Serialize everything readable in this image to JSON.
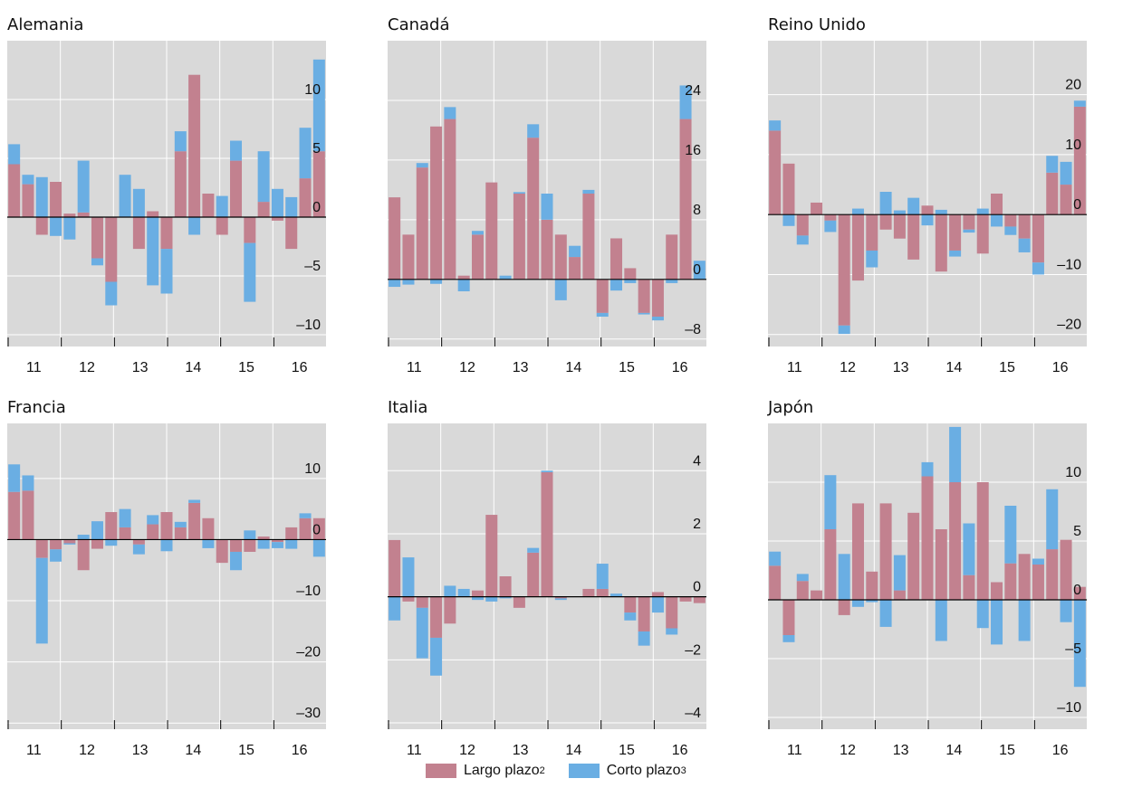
{
  "legend": {
    "long_label": "Largo plazo",
    "long_sup": "2",
    "short_label": "Corto plazo",
    "short_sup": "3"
  },
  "colors": {
    "long": "#c2818f",
    "short": "#6aaee3",
    "background": "#d9d9d9",
    "grid": "#ffffff",
    "zero_line": "#000000"
  },
  "chart_data": [
    {
      "type": "bar",
      "title": "Alemania",
      "stacked": true,
      "x_labels": [
        "11",
        "12",
        "13",
        "14",
        "15",
        "16"
      ],
      "y_ticks": [
        10,
        5,
        0,
        -5,
        -10
      ],
      "ylim": [
        -11,
        15
      ],
      "series": [
        {
          "name": "Largo plazo",
          "values": [
            4.5,
            2.8,
            -1.5,
            3.0,
            0.3,
            0.4,
            -3.5,
            -5.5,
            0,
            -2.7,
            0.5,
            -2.7,
            5.6,
            12.1,
            2.0,
            -1.5,
            4.8,
            -2.2,
            1.3,
            -0.3,
            -2.7,
            3.3,
            5.6
          ]
        },
        {
          "name": "Corto plazo",
          "values": [
            1.7,
            0.8,
            3.4,
            -1.6,
            -1.9,
            4.4,
            -0.6,
            -2.0,
            3.6,
            2.4,
            -5.8,
            -3.8,
            1.7,
            -1.5,
            0.0,
            1.8,
            1.7,
            -5.0,
            4.3,
            2.4,
            1.7,
            4.3,
            7.8
          ]
        }
      ]
    },
    {
      "type": "bar",
      "title": "Canadá",
      "stacked": true,
      "x_labels": [
        "11",
        "12",
        "13",
        "14",
        "15",
        "16"
      ],
      "y_ticks": [
        24,
        16,
        8,
        0,
        -8
      ],
      "ylim": [
        -9,
        32
      ],
      "series": [
        {
          "name": "Largo plazo",
          "values": [
            11,
            6,
            15,
            20.5,
            21.5,
            0.5,
            6.0,
            13.0,
            0.0,
            11.5,
            19.0,
            8.0,
            6.0,
            3.0,
            11.5,
            -4.5,
            5.5,
            1.5,
            -4.5,
            -5.0,
            6.0,
            21.5,
            0
          ]
        },
        {
          "name": "Corto plazo",
          "values": [
            -1.0,
            -0.7,
            0.6,
            -0.6,
            1.6,
            -1.6,
            0.5,
            0.0,
            0.5,
            0.2,
            1.8,
            3.5,
            -2.8,
            1.5,
            0.5,
            -0.5,
            -1.5,
            -0.5,
            -0.2,
            -0.5,
            -0.5,
            4.5,
            2.5
          ]
        }
      ]
    },
    {
      "type": "bar",
      "title": "Reino Unido",
      "stacked": true,
      "x_labels": [
        "11",
        "12",
        "13",
        "14",
        "15",
        "16"
      ],
      "y_ticks": [
        20,
        10,
        0,
        -10,
        -20
      ],
      "ylim": [
        -22,
        29
      ],
      "series": [
        {
          "name": "Largo plazo",
          "values": [
            14.0,
            8.5,
            -3.5,
            2.0,
            -1.0,
            -18.5,
            -11.0,
            -6.0,
            -2.5,
            -4.0,
            -7.5,
            1.5,
            -9.5,
            -6.0,
            -2.5,
            -6.5,
            3.5,
            -2.0,
            -4.0,
            -8.0,
            7.0,
            5.0,
            18.0
          ]
        },
        {
          "name": "Corto plazo",
          "values": [
            1.7,
            -1.9,
            -1.5,
            0.0,
            -1.9,
            -1.4,
            1.0,
            -2.8,
            3.8,
            0.7,
            2.8,
            -1.8,
            0.8,
            -1.0,
            -0.5,
            1.0,
            -2.0,
            -1.4,
            -2.3,
            -2.0,
            2.8,
            3.8,
            1.0
          ]
        }
      ]
    },
    {
      "type": "bar",
      "title": "Francia",
      "stacked": true,
      "x_labels": [
        "11",
        "12",
        "13",
        "14",
        "15",
        "16"
      ],
      "y_ticks": [
        10,
        0,
        -10,
        -20,
        -30
      ],
      "ylim": [
        -31,
        19
      ],
      "series": [
        {
          "name": "Largo plazo",
          "values": [
            7.8,
            8.0,
            -3.0,
            -1.6,
            -0.6,
            -5.0,
            -1.5,
            4.5,
            2.0,
            -0.8,
            2.5,
            4.5,
            2.0,
            6.0,
            3.5,
            -3.8,
            -2.0,
            -2.0,
            0.5,
            -0.4,
            2.0,
            3.5,
            3.5
          ]
        },
        {
          "name": "Corto plazo",
          "values": [
            4.5,
            2.5,
            -14.0,
            -2.0,
            -0.2,
            0.8,
            3.0,
            -1.0,
            3.0,
            -1.6,
            1.5,
            -1.9,
            0.9,
            0.5,
            -1.4,
            0.0,
            -3.0,
            1.5,
            -1.5,
            -1.0,
            -1.5,
            0.8,
            -2.8
          ]
        }
      ]
    },
    {
      "type": "bar",
      "title": "Italia",
      "stacked": true,
      "x_labels": [
        "11",
        "12",
        "13",
        "14",
        "15",
        "16"
      ],
      "y_ticks": [
        4,
        2,
        0,
        -2,
        -4
      ],
      "ylim": [
        -4.2,
        5.5
      ],
      "series": [
        {
          "name": "Largo plazo",
          "values": [
            1.8,
            -0.15,
            -0.35,
            -1.3,
            -0.85,
            0.0,
            0.2,
            2.6,
            0.65,
            -0.35,
            1.4,
            3.95,
            -0.05,
            0.0,
            0.25,
            0.25,
            0.0,
            -0.5,
            -1.1,
            0.15,
            -1.0,
            -0.15,
            -0.2
          ]
        },
        {
          "name": "Corto plazo",
          "values": [
            -0.75,
            1.25,
            -1.6,
            -1.2,
            0.35,
            0.25,
            -0.1,
            -0.15,
            -0.05,
            0.0,
            0.15,
            0.05,
            -0.05,
            0.0,
            0.0,
            0.8,
            0.1,
            -0.25,
            -0.45,
            -0.5,
            -0.2,
            0.0,
            0.0
          ]
        }
      ]
    },
    {
      "type": "bar",
      "title": "Japón",
      "stacked": true,
      "x_labels": [
        "11",
        "12",
        "13",
        "14",
        "15",
        "16"
      ],
      "y_ticks": [
        10,
        5,
        0,
        -5,
        -10
      ],
      "ylim": [
        -11,
        15
      ],
      "series": [
        {
          "name": "Largo plazo",
          "values": [
            2.9,
            -3.0,
            1.6,
            0.8,
            6.0,
            -1.3,
            8.2,
            2.4,
            8.2,
            0.8,
            7.4,
            10.5,
            6.0,
            10.0,
            2.1,
            10.0,
            1.5,
            3.1,
            3.9,
            3.0,
            4.3,
            5.1,
            1.1
          ]
        },
        {
          "name": "Corto plazo",
          "values": [
            1.2,
            -0.6,
            0.6,
            0.0,
            4.6,
            3.9,
            -0.6,
            -0.2,
            -2.3,
            3.0,
            0.0,
            1.2,
            -3.5,
            4.7,
            4.4,
            -2.4,
            -3.8,
            4.9,
            -3.5,
            0.5,
            5.1,
            -1.9,
            -7.4
          ]
        }
      ]
    }
  ]
}
